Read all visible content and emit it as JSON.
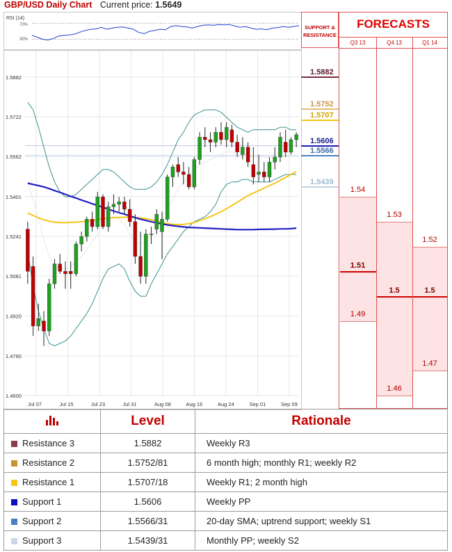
{
  "header": {
    "title": "GBP/USD Daily Chart",
    "price_label": "Current price:",
    "price_value": "1.5649"
  },
  "rsi": {
    "label": "RSI (14)",
    "ticks": [
      "70%",
      "30%"
    ]
  },
  "side": {
    "sr_title_1": "SUPPORT &",
    "sr_title_2": "RESISTANCE",
    "forecast_title": "FORECASTS",
    "columns": [
      "Q3 13",
      "Q4 13",
      "Q1 14"
    ]
  },
  "levels": [
    {
      "value": "1.5882",
      "color": "#7b2b3f",
      "text_color": "#5a1a2a"
    },
    {
      "value": "1.5752",
      "color": "#e7b877",
      "text_color": "#c89548"
    },
    {
      "value": "1.5707",
      "color": "#f5c518",
      "text_color": "#d4a000"
    },
    {
      "value": "1.5606",
      "color": "#1c1cb0",
      "text_color": "#1c1c90"
    },
    {
      "value": "1.5566",
      "color": "#4a7fc1",
      "text_color": "#3a6aa8"
    },
    {
      "value": "1.5439",
      "color": "#bcd6e8",
      "text_color": "#9cbdd2"
    }
  ],
  "forecasts": [
    {
      "column": "Q3 13",
      "high": "1.54",
      "mid": "1.51",
      "low": "1.49"
    },
    {
      "column": "Q4 13",
      "high": "1.53",
      "mid": "1.5",
      "low": "1.46"
    },
    {
      "column": "Q1 14",
      "high": "1.52",
      "mid": "1.5",
      "low": "1.47"
    }
  ],
  "table": {
    "headers": [
      "Level",
      "Rationale"
    ],
    "rows": [
      {
        "name": "Resistance 3",
        "level": "1.5882",
        "rationale": "Weekly R3",
        "color": "#8b3a4a"
      },
      {
        "name": "Resistance 2",
        "level": "1.5752/81",
        "rationale": "6 month high; monthly R1; weekly R2",
        "color": "#c9922e"
      },
      {
        "name": "Resistance 1",
        "level": "1.5707/18",
        "rationale": "Weekly R1; 2 month high",
        "color": "#f5c518"
      },
      {
        "name": "Support 1",
        "level": "1.5606",
        "rationale": "Weekly PP",
        "color": "#1010c0"
      },
      {
        "name": "Support 2",
        "level": "1.5566/31",
        "rationale": "20-day SMA; uptrend support; weekly S1",
        "color": "#4a7fc1"
      },
      {
        "name": "Support 3",
        "level": "1.5439/31",
        "rationale": "Monthly PP; weekly S2",
        "color": "#c8d8e8"
      }
    ]
  },
  "chart_data": {
    "type": "candlestick",
    "y_ticks": [
      1.5882,
      1.5722,
      1.5562,
      1.5401,
      1.5241,
      1.5081,
      1.492,
      1.476,
      1.46
    ],
    "x_ticks": [
      "Jul 07",
      "Jul 15",
      "Jul 23",
      "Jul 31",
      "Aug 08",
      "Aug 16",
      "Aug 24",
      "Sep 01",
      "Sep 09"
    ],
    "ylim": [
      1.46,
      1.596
    ],
    "candles": [
      [
        1.527,
        1.53,
        1.505,
        1.51
      ],
      [
        1.512,
        1.516,
        1.484,
        1.488
      ],
      [
        1.488,
        1.497,
        1.486,
        1.491
      ],
      [
        1.49,
        1.494,
        1.48,
        1.486
      ],
      [
        1.486,
        1.507,
        1.484,
        1.505
      ],
      [
        1.505,
        1.515,
        1.503,
        1.513
      ],
      [
        1.513,
        1.517,
        1.509,
        1.51
      ],
      [
        1.51,
        1.514,
        1.503,
        1.509
      ],
      [
        1.51,
        1.514,
        1.503,
        1.509
      ],
      [
        1.509,
        1.522,
        1.508,
        1.521
      ],
      [
        1.521,
        1.526,
        1.518,
        1.524
      ],
      [
        1.524,
        1.532,
        1.522,
        1.531
      ],
      [
        1.531,
        1.534,
        1.526,
        1.528
      ],
      [
        1.528,
        1.542,
        1.527,
        1.54
      ],
      [
        1.54,
        1.541,
        1.527,
        1.528
      ],
      [
        1.528,
        1.538,
        1.526,
        1.536
      ],
      [
        1.536,
        1.541,
        1.533,
        1.537
      ],
      [
        1.537,
        1.54,
        1.534,
        1.538
      ],
      [
        1.538,
        1.54,
        1.533,
        1.535
      ],
      [
        1.535,
        1.539,
        1.528,
        1.53
      ],
      [
        1.53,
        1.533,
        1.513,
        1.516
      ],
      [
        1.516,
        1.526,
        1.505,
        1.508
      ],
      [
        1.508,
        1.527,
        1.505,
        1.525
      ],
      [
        1.525,
        1.528,
        1.521,
        1.525
      ],
      [
        1.527,
        1.535,
        1.525,
        1.533
      ],
      [
        1.526,
        1.534,
        1.515,
        1.531
      ],
      [
        1.531,
        1.549,
        1.53,
        1.548
      ],
      [
        1.548,
        1.553,
        1.544,
        1.552
      ],
      [
        1.553,
        1.556,
        1.548,
        1.55
      ],
      [
        1.55,
        1.554,
        1.545,
        1.549
      ],
      [
        1.549,
        1.552,
        1.543,
        1.544
      ],
      [
        1.544,
        1.556,
        1.543,
        1.555
      ],
      [
        1.555,
        1.566,
        1.553,
        1.564
      ],
      [
        1.564,
        1.568,
        1.56,
        1.563
      ],
      [
        1.563,
        1.566,
        1.558,
        1.562
      ],
      [
        1.562,
        1.568,
        1.56,
        1.566
      ],
      [
        1.566,
        1.57,
        1.561,
        1.563
      ],
      [
        1.563,
        1.57,
        1.56,
        1.568
      ],
      [
        1.567,
        1.569,
        1.56,
        1.562
      ],
      [
        1.562,
        1.565,
        1.556,
        1.558
      ],
      [
        1.557,
        1.564,
        1.555,
        1.56
      ],
      [
        1.56,
        1.562,
        1.552,
        1.554
      ],
      [
        1.553,
        1.56,
        1.545,
        1.548
      ],
      [
        1.549,
        1.557,
        1.546,
        1.55
      ],
      [
        1.55,
        1.554,
        1.546,
        1.548
      ],
      [
        1.548,
        1.556,
        1.546,
        1.554
      ],
      [
        1.554,
        1.56,
        1.551,
        1.556
      ],
      [
        1.556,
        1.566,
        1.554,
        1.564
      ],
      [
        1.562,
        1.567,
        1.556,
        1.558
      ],
      [
        1.558,
        1.564,
        1.557,
        1.563
      ],
      [
        1.563,
        1.566,
        1.56,
        1.565
      ]
    ],
    "sma_100": [
      1.5455,
      1.545,
      1.5445,
      1.544,
      1.5433,
      1.5425,
      1.5418,
      1.541,
      1.5402,
      1.5395,
      1.5387,
      1.538,
      1.5372,
      1.5365,
      1.5358,
      1.535,
      1.5343,
      1.5336,
      1.533,
      1.5323,
      1.5316,
      1.531,
      1.5305,
      1.53,
      1.5295,
      1.5291,
      1.5287,
      1.5284,
      1.5281,
      1.5279,
      1.5277,
      1.5276,
      1.5275,
      1.5274,
      1.5273,
      1.5272,
      1.5271,
      1.527,
      1.5269,
      1.5268,
      1.5268,
      1.5268,
      1.5268,
      1.5269,
      1.5269,
      1.527,
      1.527,
      1.5271,
      1.5271,
      1.5272,
      1.5274
    ],
    "sma_50": [
      1.5335,
      1.5325,
      1.5315,
      1.5308,
      1.5302,
      1.5298,
      1.5296,
      1.5296,
      1.5297,
      1.5298,
      1.53,
      1.5302,
      1.5305,
      1.5308,
      1.5312,
      1.5314,
      1.5316,
      1.5317,
      1.5318,
      1.5318,
      1.5317,
      1.5315,
      1.5312,
      1.5308,
      1.5303,
      1.5297,
      1.5292,
      1.5289,
      1.5288,
      1.5289,
      1.5292,
      1.5297,
      1.5304,
      1.5312,
      1.532,
      1.533,
      1.534,
      1.5352,
      1.5365,
      1.5378,
      1.5392,
      1.5405,
      1.5415,
      1.5425,
      1.5435,
      1.5445,
      1.5455,
      1.5467,
      1.5478,
      1.549,
      1.5502
    ],
    "bb_upper": [
      1.578,
      1.575,
      1.568,
      1.56,
      1.552,
      1.546,
      1.542,
      1.54,
      1.54,
      1.541,
      1.543,
      1.545,
      1.547,
      1.549,
      1.551,
      1.551,
      1.55,
      1.548,
      1.546,
      1.544,
      1.543,
      1.543,
      1.543,
      1.544,
      1.546,
      1.549,
      1.553,
      1.558,
      1.563,
      1.566,
      1.57,
      1.573,
      1.574,
      1.575,
      1.575,
      1.575,
      1.574,
      1.572,
      1.57,
      1.568,
      1.567,
      1.566,
      1.567,
      1.567,
      1.567,
      1.567,
      1.567,
      1.568,
      1.568,
      1.567,
      1.567
    ],
    "bb_lower": [
      1.518,
      1.504,
      1.494,
      1.487,
      1.481,
      1.48,
      1.481,
      1.482,
      1.484,
      1.487,
      1.49,
      1.493,
      1.497,
      1.502,
      1.507,
      1.511,
      1.512,
      1.513,
      1.511,
      1.506,
      1.502,
      1.5,
      1.5,
      1.505,
      1.509,
      1.513,
      1.517,
      1.52,
      1.523,
      1.526,
      1.528,
      1.53,
      1.531,
      1.532,
      1.534,
      1.537,
      1.542,
      1.545,
      1.546,
      1.546,
      1.547,
      1.547,
      1.546,
      1.546,
      1.546,
      1.546,
      1.547,
      1.548,
      1.549,
      1.549,
      1.549
    ],
    "bb_mid": [
      1.546,
      1.539,
      1.531,
      1.523,
      1.516,
      1.512,
      1.511,
      1.511,
      1.512,
      1.514,
      1.516,
      1.519,
      1.522,
      1.525,
      1.529,
      1.531,
      1.532,
      1.531,
      1.529,
      1.525,
      1.522,
      1.521,
      1.521,
      1.524,
      1.527,
      1.531,
      1.535,
      1.539,
      1.543,
      1.546,
      1.549,
      1.551,
      1.553,
      1.554,
      1.555,
      1.556,
      1.557,
      1.558,
      1.558,
      1.557,
      1.557,
      1.557,
      1.556,
      1.556,
      1.556,
      1.556,
      1.557,
      1.558,
      1.558,
      1.558,
      1.558
    ],
    "rsi_values": [
      40,
      35,
      30,
      28,
      32,
      38,
      40,
      41,
      43,
      48,
      52,
      55,
      56,
      60,
      55,
      58,
      60,
      61,
      58,
      55,
      47,
      44,
      50,
      52,
      55,
      54,
      62,
      64,
      62,
      61,
      58,
      62,
      65,
      66,
      65,
      67,
      66,
      67,
      63,
      60,
      62,
      58,
      55,
      56,
      54,
      58,
      59,
      62,
      60,
      62,
      64
    ]
  }
}
